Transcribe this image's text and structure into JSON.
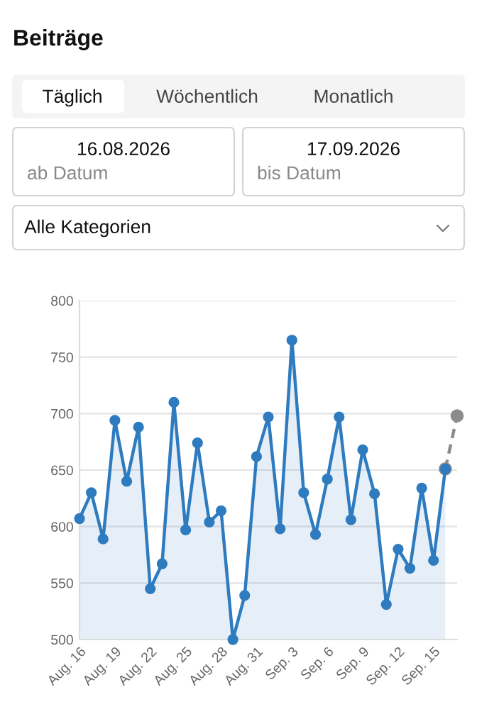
{
  "chart_data": {
    "type": "line",
    "title": "Beiträge",
    "annotations": [
      "Täglich",
      "Wöchentlich",
      "Monatlich",
      "16.08.2026",
      "ab Datum",
      "17.09.2026",
      "bis Datum",
      "Alle Kategorien"
    ],
    "x": [
      "2026-08-16",
      "2026-08-17",
      "2026-08-18",
      "2026-08-19",
      "2026-08-20",
      "2026-08-21",
      "2026-08-22",
      "2026-08-23",
      "2026-08-24",
      "2026-08-25",
      "2026-08-26",
      "2026-08-27",
      "2026-08-28",
      "2026-08-29",
      "2026-08-30",
      "2026-08-31",
      "2026-09-01",
      "2026-09-02",
      "2026-09-03",
      "2026-09-04",
      "2026-09-05",
      "2026-09-06",
      "2026-09-07",
      "2026-09-08",
      "2026-09-09",
      "2026-09-10",
      "2026-09-11",
      "2026-09-12",
      "2026-09-13",
      "2026-09-14",
      "2026-09-15",
      "2026-09-16",
      "2026-09-17"
    ],
    "series": [
      {
        "type": "area",
        "color": "#2e7bbf",
        "values": [
          607,
          630,
          589,
          694,
          640,
          688,
          545,
          567,
          710,
          597,
          674,
          604,
          614,
          500,
          539,
          662,
          697,
          598,
          765,
          630,
          593,
          642,
          697,
          606,
          668,
          629,
          531,
          580,
          563,
          634,
          570,
          651,
          null
        ]
      },
      {
        "color": "#8c8c8c",
        "line_style": "dashed",
        "values": [
          null,
          null,
          null,
          null,
          null,
          null,
          null,
          null,
          null,
          null,
          null,
          null,
          null,
          null,
          null,
          null,
          null,
          null,
          null,
          null,
          null,
          null,
          null,
          null,
          null,
          null,
          null,
          null,
          null,
          null,
          null,
          651,
          698
        ]
      }
    ],
    "xlim": [
      "2026-08-16",
      "2026-09-17"
    ],
    "xticks": [
      {
        "value": "2026-08-16",
        "label": "Aug. 16"
      },
      {
        "value": "2026-08-19",
        "label": "Aug. 19"
      },
      {
        "value": "2026-08-22",
        "label": "Aug. 22"
      },
      {
        "value": "2026-08-25",
        "label": "Aug. 25"
      },
      {
        "value": "2026-08-28",
        "label": "Aug. 28"
      },
      {
        "value": "2026-08-31",
        "label": "Aug. 31"
      },
      {
        "value": "2026-09-03",
        "label": "Sep. 3"
      },
      {
        "value": "2026-09-06",
        "label": "Sep. 6"
      },
      {
        "value": "2026-09-09",
        "label": "Sep. 9"
      },
      {
        "value": "2026-09-12",
        "label": "Sep. 12"
      },
      {
        "value": "2026-09-15",
        "label": "Sep. 15"
      }
    ],
    "ylim": [
      500,
      800
    ],
    "yticks": [
      500,
      550,
      600,
      650,
      700,
      750,
      800
    ],
    "grid": "y",
    "marker": "circle"
  }
}
